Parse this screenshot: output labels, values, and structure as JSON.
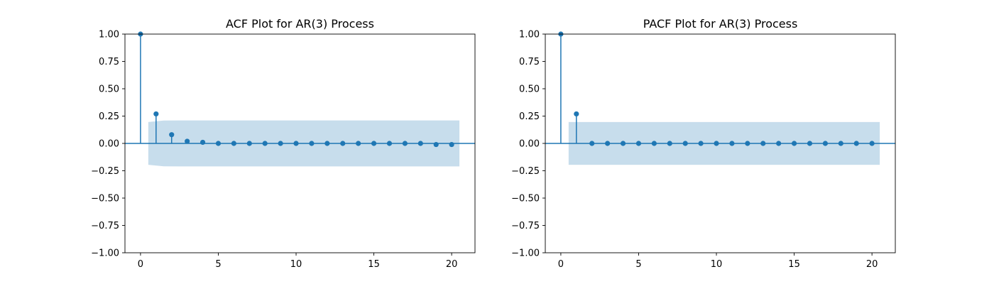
{
  "colors": {
    "stem": "#1f77b4",
    "band": "#1f77b4",
    "zero_line": "#1f77b4",
    "axes": "#000000",
    "background": "#ffffff"
  },
  "chart_data": [
    {
      "type": "stem",
      "title": "ACF Plot for AR(3) Process",
      "xlabel": "",
      "ylabel": "",
      "xlim": [
        -1,
        21.5
      ],
      "ylim": [
        -1.0,
        1.0
      ],
      "xticks": [
        0,
        5,
        10,
        15,
        20
      ],
      "xtick_labels": [
        "0",
        "5",
        "10",
        "15",
        "20"
      ],
      "yticks": [
        1.0,
        0.75,
        0.5,
        0.25,
        0.0,
        -0.25,
        -0.5,
        -0.75,
        -1.0
      ],
      "ytick_labels": [
        "1.00",
        "0.75",
        "0.50",
        "0.25",
        "0.00",
        "−0.25",
        "−0.50",
        "−0.75",
        "−1.00"
      ],
      "grid": false,
      "lags": [
        0,
        1,
        2,
        3,
        4,
        5,
        6,
        7,
        8,
        9,
        10,
        11,
        12,
        13,
        14,
        15,
        16,
        17,
        18,
        19,
        20
      ],
      "values": [
        1.0,
        0.27,
        0.08,
        0.02,
        0.01,
        0.0,
        0.0,
        0.0,
        0.0,
        0.0,
        0.0,
        0.0,
        0.0,
        0.0,
        0.0,
        0.0,
        0.0,
        0.0,
        0.0,
        -0.01,
        -0.01
      ],
      "confidence_band": {
        "x": [
          0.5,
          1.5,
          2.5,
          3.5,
          20.5
        ],
        "upper": [
          0.196,
          0.209,
          0.21,
          0.21,
          0.21
        ],
        "lower": [
          -0.196,
          -0.209,
          -0.21,
          -0.21,
          -0.21
        ]
      }
    },
    {
      "type": "stem",
      "title": "PACF Plot for AR(3) Process",
      "xlabel": "",
      "ylabel": "",
      "xlim": [
        -1,
        21.5
      ],
      "ylim": [
        -1.0,
        1.0
      ],
      "xticks": [
        0,
        5,
        10,
        15,
        20
      ],
      "xtick_labels": [
        "0",
        "5",
        "10",
        "15",
        "20"
      ],
      "yticks": [
        1.0,
        0.75,
        0.5,
        0.25,
        0.0,
        -0.25,
        -0.5,
        -0.75,
        -1.0
      ],
      "ytick_labels": [
        "1.00",
        "0.75",
        "0.50",
        "0.25",
        "0.00",
        "−0.25",
        "−0.50",
        "−0.75",
        "−1.00"
      ],
      "grid": false,
      "lags": [
        0,
        1,
        2,
        3,
        4,
        5,
        6,
        7,
        8,
        9,
        10,
        11,
        12,
        13,
        14,
        15,
        16,
        17,
        18,
        19,
        20
      ],
      "values": [
        1.0,
        0.27,
        0.0,
        0.0,
        0.0,
        0.0,
        0.0,
        0.0,
        0.0,
        0.0,
        0.0,
        0.0,
        0.0,
        0.0,
        0.0,
        0.0,
        0.0,
        0.0,
        0.0,
        0.0,
        0.0
      ],
      "confidence_band": {
        "x": [
          0.5,
          20.5
        ],
        "upper": [
          0.196,
          0.196
        ],
        "lower": [
          -0.196,
          -0.196
        ]
      }
    }
  ]
}
